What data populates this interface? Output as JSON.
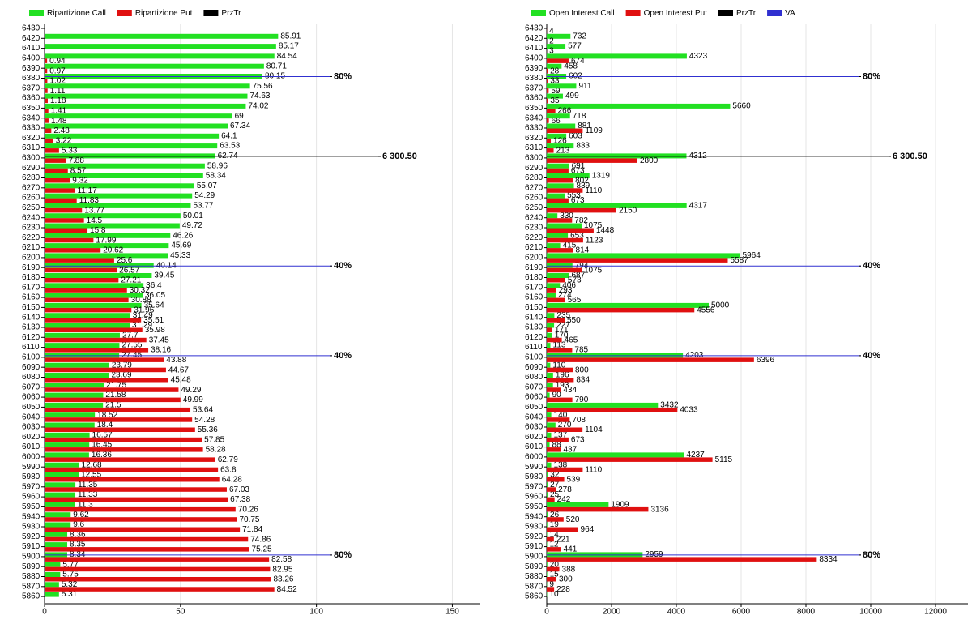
{
  "chart_data": [
    {
      "type": "bar",
      "orientation": "horizontal",
      "categories": [
        6430,
        6420,
        6410,
        6400,
        6390,
        6380,
        6370,
        6360,
        6350,
        6340,
        6330,
        6320,
        6310,
        6300,
        6290,
        6280,
        6270,
        6260,
        6250,
        6240,
        6230,
        6220,
        6210,
        6200,
        6190,
        6180,
        6170,
        6160,
        6150,
        6140,
        6130,
        6120,
        6110,
        6100,
        6090,
        6080,
        6070,
        6060,
        6050,
        6040,
        6030,
        6020,
        6010,
        6000,
        5990,
        5980,
        5970,
        5960,
        5950,
        5940,
        5930,
        5920,
        5910,
        5900,
        5890,
        5880,
        5870,
        5860
      ],
      "series": [
        {
          "name": "Ripartizione Call",
          "color": "#22e022",
          "values": [
            null,
            85.91,
            85.17,
            84.54,
            80.71,
            80.15,
            75.56,
            74.63,
            74.02,
            69,
            67.34,
            64.1,
            63.53,
            62.74,
            58.96,
            58.34,
            55.07,
            54.29,
            53.77,
            50.01,
            49.72,
            46.26,
            45.69,
            45.33,
            40.14,
            39.45,
            36.4,
            36.05,
            35.64,
            31.49,
            31.29,
            27.7,
            27.55,
            27.45,
            23.79,
            23.69,
            21.75,
            21.58,
            21.5,
            18.52,
            18.4,
            16.57,
            16.45,
            16.36,
            12.68,
            12.55,
            11.35,
            11.33,
            11.3,
            9.62,
            9.6,
            8.36,
            8.35,
            8.34,
            5.77,
            5.75,
            5.32,
            5.31
          ]
        },
        {
          "name": "Ripartizione Put",
          "color": "#e01010",
          "values": [
            null,
            null,
            null,
            0.94,
            0.97,
            1.02,
            1.11,
            1.18,
            1.41,
            1.48,
            2.48,
            3.22,
            5.33,
            7.88,
            8.57,
            9.32,
            11.17,
            11.83,
            13.77,
            14.5,
            15.8,
            17.99,
            20.62,
            25.6,
            26.57,
            27.21,
            30.32,
            30.88,
            31.96,
            35.51,
            35.98,
            37.45,
            38.16,
            43.88,
            44.67,
            45.48,
            49.29,
            49.99,
            53.64,
            54.28,
            55.36,
            57.85,
            58.28,
            62.79,
            63.8,
            64.28,
            67.03,
            67.38,
            70.26,
            70.75,
            71.84,
            74.86,
            75.25,
            82.58,
            82.95,
            83.26,
            84.52,
            null
          ]
        },
        {
          "name": "PrzTr",
          "color": "#000000"
        }
      ],
      "reference_lines": [
        {
          "category": 6380,
          "label": "80%",
          "color": "#3030d0"
        },
        {
          "category": 6300,
          "label": "6 300.50",
          "color": "#000000"
        },
        {
          "category": 6190,
          "label": "40%",
          "color": "#3030d0"
        },
        {
          "category": 6100,
          "label": "40%",
          "color": "#3030d0"
        },
        {
          "category": 5900,
          "label": "80%",
          "color": "#3030d0"
        }
      ],
      "xlim": [
        0,
        160
      ],
      "xticks": [
        0,
        50,
        100,
        150
      ],
      "grid": true
    },
    {
      "type": "bar",
      "orientation": "horizontal",
      "categories": [
        6430,
        6420,
        6410,
        6400,
        6390,
        6380,
        6370,
        6360,
        6350,
        6340,
        6330,
        6320,
        6310,
        6300,
        6290,
        6280,
        6270,
        6260,
        6250,
        6240,
        6230,
        6220,
        6210,
        6200,
        6190,
        6180,
        6170,
        6160,
        6150,
        6140,
        6130,
        6120,
        6110,
        6100,
        6090,
        6080,
        6070,
        6060,
        6050,
        6040,
        6030,
        6020,
        6010,
        6000,
        5990,
        5980,
        5970,
        5960,
        5950,
        5940,
        5930,
        5920,
        5910,
        5900,
        5890,
        5880,
        5870,
        5860
      ],
      "series": [
        {
          "name": "Open Interest Call",
          "color": "#22e022",
          "values": [
            null,
            732,
            577,
            4323,
            458,
            602,
            911,
            499,
            5660,
            718,
            881,
            603,
            833,
            4312,
            691,
            1319,
            839,
            553,
            4317,
            330,
            1075,
            653,
            415,
            5964,
            794,
            687,
            406,
            274,
            5000,
            235,
            227,
            170,
            113,
            4203,
            110,
            196,
            193,
            90,
            3432,
            140,
            270,
            137,
            88,
            4237,
            138,
            32,
            27,
            25,
            1909,
            26,
            19,
            14,
            12,
            2959,
            20,
            15,
            9,
            10
          ]
        },
        {
          "name": "Open Interest Put",
          "color": "#e01010",
          "values": [
            4,
            2,
            3,
            674,
            28,
            33,
            59,
            35,
            266,
            66,
            1109,
            126,
            213,
            2800,
            673,
            802,
            1110,
            673,
            2150,
            782,
            1448,
            1123,
            814,
            5587,
            1075,
            573,
            293,
            565,
            4556,
            550,
            171,
            465,
            785,
            6396,
            800,
            834,
            434,
            790,
            4033,
            708,
            1104,
            673,
            437,
            5115,
            1110,
            539,
            278,
            242,
            3136,
            520,
            964,
            221,
            441,
            8334,
            388,
            300,
            228,
            null
          ]
        },
        {
          "name": "PrzTr",
          "color": "#000000"
        },
        {
          "name": "VA",
          "color": "#3030d0"
        }
      ],
      "reference_lines": [
        {
          "category": 6380,
          "label": "80%",
          "color": "#3030d0"
        },
        {
          "category": 6300,
          "label": "6 300.50",
          "color": "#000000"
        },
        {
          "category": 6190,
          "label": "40%",
          "color": "#3030d0"
        },
        {
          "category": 6100,
          "label": "40%",
          "color": "#3030d0"
        },
        {
          "category": 5900,
          "label": "80%",
          "color": "#3030d0"
        }
      ],
      "xlim": [
        0,
        13000
      ],
      "xticks": [
        0,
        2000,
        4000,
        6000,
        8000,
        10000,
        12000
      ],
      "grid": true
    }
  ]
}
